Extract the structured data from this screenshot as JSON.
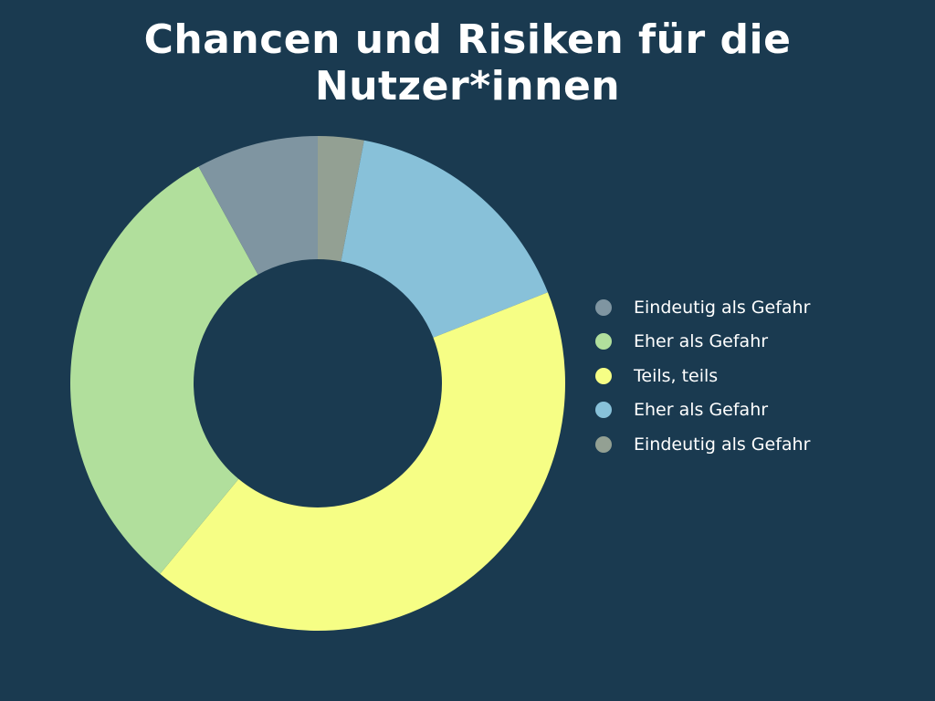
{
  "chart_data": {
    "type": "pie",
    "donut": true,
    "title": "Chancen und Risiken für die Nutzer*innen",
    "start": "top, clockwise, in reverse legend order",
    "legend_position": "right",
    "series": [
      {
        "name": "Eindeutig als Gefahr",
        "value": 8,
        "color": "#7f95a1"
      },
      {
        "name": "Eher als Gefahr",
        "value": 31,
        "color": "#b1df9c"
      },
      {
        "name": "Teils, teils",
        "value": 42,
        "color": "#f6fe85"
      },
      {
        "name": "Eher als Gefahr",
        "value": 16,
        "color": "#88c1d9"
      },
      {
        "name": "Eindeutig als Gefahr",
        "value": 3,
        "color": "#93a093"
      }
    ]
  },
  "background": "#1a3a50"
}
